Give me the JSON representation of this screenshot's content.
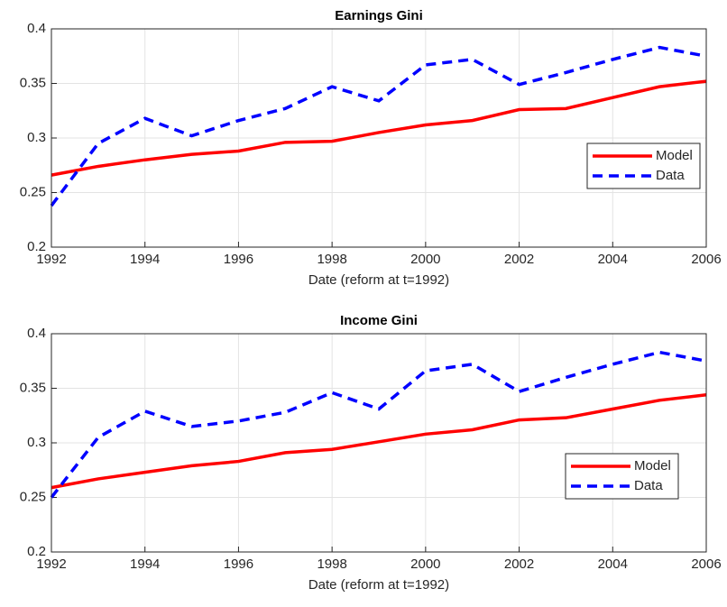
{
  "chart_data": [
    {
      "type": "line",
      "title": "Earnings Gini",
      "xlabel": "Date (reform at t=1992)",
      "x": [
        1992,
        1993,
        1994,
        1995,
        1996,
        1997,
        1998,
        1999,
        2000,
        2001,
        2002,
        2003,
        2004,
        2005,
        2006
      ],
      "series": [
        {
          "name": "Model",
          "color": "#ff0000",
          "linestyle": "solid",
          "values": [
            0.266,
            0.274,
            0.28,
            0.285,
            0.288,
            0.296,
            0.297,
            0.305,
            0.312,
            0.316,
            0.326,
            0.327,
            0.337,
            0.347,
            0.352
          ]
        },
        {
          "name": "Data",
          "color": "#0000ff",
          "linestyle": "dashed",
          "values": [
            0.238,
            0.295,
            0.318,
            0.302,
            0.316,
            0.327,
            0.347,
            0.334,
            0.367,
            0.372,
            0.349,
            0.36,
            0.372,
            0.383,
            0.375
          ]
        }
      ],
      "xlim": [
        1992,
        2006
      ],
      "ylim": [
        0.2,
        0.4
      ],
      "xticks": [
        1992,
        1994,
        1996,
        1998,
        2000,
        2002,
        2004,
        2006
      ],
      "yticks": [
        0.2,
        0.25,
        0.3,
        0.35,
        0.4
      ],
      "grid": true,
      "legend_loc": "east"
    },
    {
      "type": "line",
      "title": "Income Gini",
      "xlabel": "Date (reform at t=1992)",
      "x": [
        1992,
        1993,
        1994,
        1995,
        1996,
        1997,
        1998,
        1999,
        2000,
        2001,
        2002,
        2003,
        2004,
        2005,
        2006
      ],
      "series": [
        {
          "name": "Model",
          "color": "#ff0000",
          "linestyle": "solid",
          "values": [
            0.259,
            0.267,
            0.273,
            0.279,
            0.283,
            0.291,
            0.294,
            0.301,
            0.308,
            0.312,
            0.321,
            0.323,
            0.331,
            0.339,
            0.344
          ]
        },
        {
          "name": "Data",
          "color": "#0000ff",
          "linestyle": "dashed",
          "values": [
            0.25,
            0.305,
            0.329,
            0.315,
            0.32,
            0.328,
            0.346,
            0.331,
            0.366,
            0.372,
            0.347,
            0.36,
            0.372,
            0.383,
            0.375
          ]
        }
      ],
      "xlim": [
        1992,
        2006
      ],
      "ylim": [
        0.2,
        0.4
      ],
      "xticks": [
        1992,
        1994,
        1996,
        1998,
        2000,
        2002,
        2004,
        2006
      ],
      "yticks": [
        0.2,
        0.25,
        0.3,
        0.35,
        0.4
      ],
      "grid": true,
      "legend_loc": "east"
    }
  ]
}
